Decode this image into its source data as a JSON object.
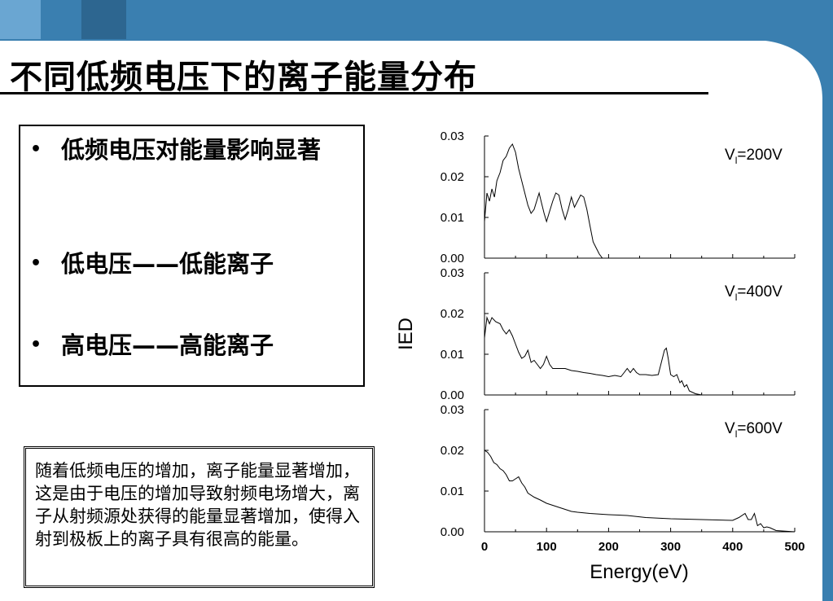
{
  "slide": {
    "title": "不同低频电压下的离子能量分布",
    "theme_colors": {
      "band": "#3a7fb0",
      "band_light": "#6aa6d2",
      "band_dark": "#2d6690"
    }
  },
  "bullets": [
    {
      "marker": "•",
      "text": "低频电压对能量影响显著"
    },
    {
      "marker": "•",
      "text": "低电压——低能离子"
    },
    {
      "marker": "•",
      "text": "高电压——高能离子"
    }
  ],
  "note": {
    "text": "随着低频电压的增加，离子能量显著增加，这是由于电压的增加导致射频电场增大，离子从射频源处获得的能量显著增加，使得入射到极板上的离子具有很高的能量。"
  },
  "chart_data": {
    "type": "line",
    "xlabel": "Energy(eV)",
    "ylabel": "IED",
    "xlim": [
      0,
      500
    ],
    "ylim": [
      0,
      0.03
    ],
    "x_ticks": [
      "0",
      "100",
      "200",
      "300",
      "400",
      "500"
    ],
    "y_ticks": [
      "0.00",
      "0.01",
      "0.02",
      "0.03"
    ],
    "grid": false,
    "series": [
      {
        "label": "V",
        "label_sub": "l",
        "label_tail": "=200V",
        "points": [
          [
            0,
            0.009
          ],
          [
            4,
            0.016
          ],
          [
            8,
            0.014
          ],
          [
            12,
            0.017
          ],
          [
            16,
            0.015
          ],
          [
            20,
            0.019
          ],
          [
            25,
            0.021
          ],
          [
            30,
            0.024
          ],
          [
            35,
            0.025
          ],
          [
            40,
            0.027
          ],
          [
            45,
            0.028
          ],
          [
            50,
            0.026
          ],
          [
            55,
            0.022
          ],
          [
            60,
            0.019
          ],
          [
            65,
            0.016
          ],
          [
            70,
            0.013
          ],
          [
            75,
            0.011
          ],
          [
            80,
            0.012
          ],
          [
            85,
            0.0145
          ],
          [
            88,
            0.016
          ],
          [
            92,
            0.0135
          ],
          [
            96,
            0.011
          ],
          [
            100,
            0.009
          ],
          [
            104,
            0.011
          ],
          [
            110,
            0.014
          ],
          [
            115,
            0.016
          ],
          [
            120,
            0.0155
          ],
          [
            125,
            0.012
          ],
          [
            130,
            0.0095
          ],
          [
            135,
            0.012
          ],
          [
            140,
            0.015
          ],
          [
            145,
            0.0125
          ],
          [
            150,
            0.014
          ],
          [
            155,
            0.0155
          ],
          [
            160,
            0.015
          ],
          [
            165,
            0.012
          ],
          [
            170,
            0.008
          ],
          [
            175,
            0.004
          ],
          [
            180,
            0.0025
          ],
          [
            185,
            0.001
          ],
          [
            190,
            0
          ],
          [
            195,
            0
          ]
        ]
      },
      {
        "label": "V",
        "label_sub": "l",
        "label_tail": "=400V",
        "points": [
          [
            0,
            0.014
          ],
          [
            4,
            0.019
          ],
          [
            8,
            0.0175
          ],
          [
            12,
            0.019
          ],
          [
            18,
            0.018
          ],
          [
            25,
            0.0175
          ],
          [
            30,
            0.016
          ],
          [
            35,
            0.015
          ],
          [
            40,
            0.016
          ],
          [
            45,
            0.0145
          ],
          [
            50,
            0.0125
          ],
          [
            55,
            0.0105
          ],
          [
            60,
            0.009
          ],
          [
            65,
            0.0095
          ],
          [
            70,
            0.011
          ],
          [
            75,
            0.008
          ],
          [
            80,
            0.0085
          ],
          [
            85,
            0.0075
          ],
          [
            90,
            0.0065
          ],
          [
            95,
            0.0075
          ],
          [
            100,
            0.0095
          ],
          [
            105,
            0.0075
          ],
          [
            110,
            0.0065
          ],
          [
            120,
            0.0065
          ],
          [
            130,
            0.0065
          ],
          [
            140,
            0.006
          ],
          [
            150,
            0.0058
          ],
          [
            160,
            0.0055
          ],
          [
            170,
            0.0053
          ],
          [
            180,
            0.005
          ],
          [
            190,
            0.0048
          ],
          [
            200,
            0.0045
          ],
          [
            210,
            0.0048
          ],
          [
            220,
            0.0045
          ],
          [
            225,
            0.0055
          ],
          [
            230,
            0.0065
          ],
          [
            235,
            0.0055
          ],
          [
            240,
            0.0065
          ],
          [
            245,
            0.0055
          ],
          [
            250,
            0.005
          ],
          [
            260,
            0.005
          ],
          [
            270,
            0.0048
          ],
          [
            280,
            0.005
          ],
          [
            285,
            0.008
          ],
          [
            290,
            0.011
          ],
          [
            293,
            0.0115
          ],
          [
            296,
            0.009
          ],
          [
            300,
            0.005
          ],
          [
            305,
            0.0045
          ],
          [
            310,
            0.005
          ],
          [
            315,
            0.003
          ],
          [
            318,
            0.0035
          ],
          [
            322,
            0.002
          ],
          [
            326,
            0.0025
          ],
          [
            330,
            0.001
          ],
          [
            340,
            0.0003
          ],
          [
            350,
            0
          ]
        ]
      },
      {
        "label": "V",
        "label_sub": "l",
        "label_tail": "=600V",
        "points": [
          [
            0,
            0.02
          ],
          [
            5,
            0.0195
          ],
          [
            10,
            0.0185
          ],
          [
            15,
            0.017
          ],
          [
            20,
            0.0165
          ],
          [
            25,
            0.0155
          ],
          [
            30,
            0.015
          ],
          [
            35,
            0.014
          ],
          [
            40,
            0.0125
          ],
          [
            45,
            0.0125
          ],
          [
            50,
            0.013
          ],
          [
            55,
            0.0135
          ],
          [
            60,
            0.012
          ],
          [
            65,
            0.011
          ],
          [
            70,
            0.0095
          ],
          [
            80,
            0.0085
          ],
          [
            90,
            0.0078
          ],
          [
            100,
            0.007
          ],
          [
            110,
            0.0065
          ],
          [
            120,
            0.006
          ],
          [
            130,
            0.0055
          ],
          [
            140,
            0.005
          ],
          [
            150,
            0.0048
          ],
          [
            170,
            0.0045
          ],
          [
            200,
            0.0042
          ],
          [
            230,
            0.004
          ],
          [
            260,
            0.0035
          ],
          [
            300,
            0.0032
          ],
          [
            350,
            0.003
          ],
          [
            400,
            0.0028
          ],
          [
            410,
            0.0035
          ],
          [
            420,
            0.0045
          ],
          [
            425,
            0.003
          ],
          [
            430,
            0.003
          ],
          [
            435,
            0.0045
          ],
          [
            440,
            0.0015
          ],
          [
            445,
            0.002
          ],
          [
            450,
            0.001
          ],
          [
            455,
            0.0012
          ],
          [
            460,
            0.001
          ],
          [
            470,
            0.0003
          ],
          [
            500,
            0
          ]
        ]
      }
    ]
  }
}
